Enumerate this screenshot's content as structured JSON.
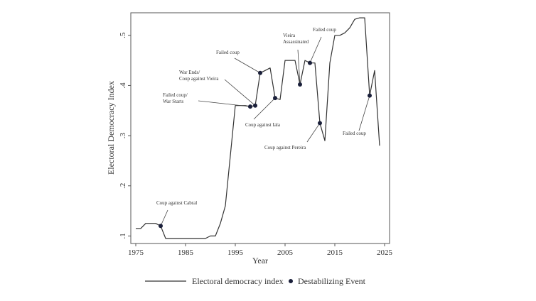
{
  "chart_data": {
    "type": "line",
    "title": "",
    "xlabel": "Year",
    "ylabel": "Electoral Democracy Index",
    "xlim": [
      1974,
      2026
    ],
    "ylim": [
      0.085,
      0.545
    ],
    "x_ticks": [
      1975,
      1985,
      1995,
      2005,
      2015,
      2025
    ],
    "y_ticks": [
      0.1,
      0.2,
      0.3,
      0.4,
      0.5
    ],
    "y_tick_labels": [
      ".1",
      ".2",
      ".3",
      ".4",
      ".5"
    ],
    "grid": false,
    "legend": {
      "position": "bottom"
    },
    "series": [
      {
        "name": "Electoral democracy index",
        "kind": "line",
        "color": "#333333",
        "x": [
          1975,
          1976,
          1977,
          1978,
          1979,
          1980,
          1981,
          1982,
          1983,
          1984,
          1985,
          1986,
          1987,
          1988,
          1989,
          1990,
          1991,
          1992,
          1993,
          1994,
          1995,
          1996,
          1997,
          1998,
          1999,
          2000,
          2001,
          2002,
          2003,
          2004,
          2005,
          2006,
          2007,
          2008,
          2009,
          2010,
          2011,
          2012,
          2013,
          2014,
          2015,
          2016,
          2017,
          2018,
          2019,
          2020,
          2021,
          2022,
          2023,
          2024
        ],
        "y": [
          0.115,
          0.115,
          0.125,
          0.125,
          0.125,
          0.12,
          0.095,
          0.095,
          0.095,
          0.095,
          0.095,
          0.095,
          0.095,
          0.095,
          0.095,
          0.1,
          0.1,
          0.125,
          0.16,
          0.26,
          0.36,
          0.36,
          0.36,
          0.358,
          0.36,
          0.425,
          0.43,
          0.435,
          0.375,
          0.372,
          0.45,
          0.45,
          0.45,
          0.402,
          0.45,
          0.445,
          0.445,
          0.325,
          0.29,
          0.445,
          0.5,
          0.5,
          0.505,
          0.515,
          0.532,
          0.535,
          0.535,
          0.38,
          0.43,
          0.28
        ]
      },
      {
        "name": "Destabilizing Event",
        "kind": "scatter",
        "color": "#1a1f3a",
        "points": [
          {
            "x": 1980,
            "y": 0.12,
            "label": "Coup against Cabral"
          },
          {
            "x": 1998,
            "y": 0.358,
            "label": "Failed coup/ War Starts"
          },
          {
            "x": 1999,
            "y": 0.36,
            "label": "War Ends/ Coup against Vieira"
          },
          {
            "x": 2000,
            "y": 0.425,
            "label": "Failed coup"
          },
          {
            "x": 2003,
            "y": 0.375,
            "label": "Coup against Iala"
          },
          {
            "x": 2008,
            "y": 0.402,
            "label": "Vieira Assassinated"
          },
          {
            "x": 2010,
            "y": 0.445,
            "label": "Failed coup"
          },
          {
            "x": 2012,
            "y": 0.325,
            "label": "Coup against Pereira"
          },
          {
            "x": 2022,
            "y": 0.38,
            "label": "Failed coup"
          }
        ]
      }
    ]
  },
  "legend": {
    "line_label": "Electoral democracy index",
    "marker_label": "Destabilizing Event"
  }
}
